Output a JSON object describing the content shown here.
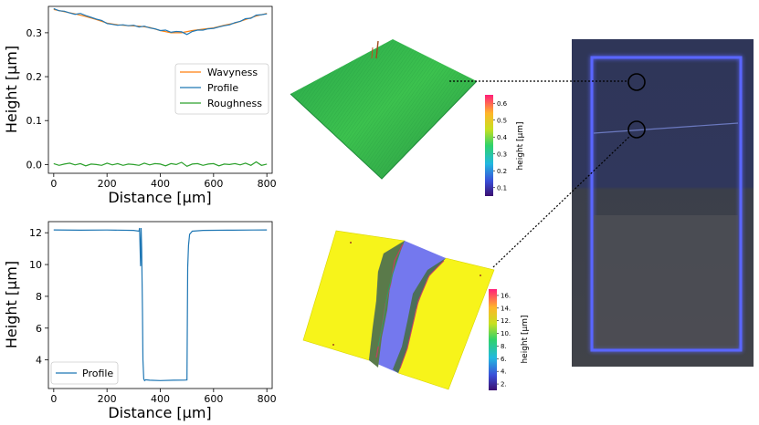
{
  "chart_data": [
    {
      "type": "line",
      "title": "",
      "xlabel": "Distance [µm]",
      "ylabel": "Height [µm]",
      "xlim": [
        -20,
        820
      ],
      "ylim": [
        -0.02,
        0.36
      ],
      "xticks": [
        "0",
        "200",
        "400",
        "600",
        "800"
      ],
      "yticks": [
        "0.0",
        "0.1",
        "0.2",
        "0.3"
      ],
      "legend_position": "center-right",
      "series": [
        {
          "name": "Wavyness",
          "color": "#ff7f0e",
          "x": [
            0,
            40,
            80,
            120,
            160,
            200,
            240,
            280,
            320,
            360,
            400,
            440,
            480,
            520,
            560,
            600,
            640,
            680,
            720,
            760,
            800
          ],
          "values": [
            0.353,
            0.348,
            0.343,
            0.337,
            0.33,
            0.322,
            0.318,
            0.316,
            0.315,
            0.312,
            0.305,
            0.3,
            0.3,
            0.305,
            0.308,
            0.311,
            0.317,
            0.322,
            0.33,
            0.338,
            0.344
          ]
        },
        {
          "name": "Profile",
          "color": "#1f77b4",
          "x": [
            0,
            20,
            40,
            60,
            80,
            100,
            120,
            140,
            160,
            180,
            200,
            220,
            240,
            260,
            280,
            300,
            320,
            340,
            360,
            380,
            400,
            420,
            440,
            460,
            480,
            500,
            520,
            540,
            560,
            580,
            600,
            620,
            640,
            660,
            680,
            700,
            720,
            740,
            760,
            780,
            800
          ],
          "values": [
            0.355,
            0.35,
            0.349,
            0.345,
            0.342,
            0.344,
            0.339,
            0.335,
            0.331,
            0.328,
            0.321,
            0.319,
            0.317,
            0.318,
            0.316,
            0.317,
            0.313,
            0.315,
            0.311,
            0.309,
            0.305,
            0.306,
            0.301,
            0.303,
            0.302,
            0.296,
            0.303,
            0.306,
            0.306,
            0.309,
            0.31,
            0.313,
            0.316,
            0.318,
            0.323,
            0.326,
            0.332,
            0.333,
            0.34,
            0.341,
            0.343
          ]
        },
        {
          "name": "Roughness",
          "color": "#2ca02c",
          "x": [
            0,
            20,
            40,
            60,
            80,
            100,
            120,
            140,
            160,
            180,
            200,
            220,
            240,
            260,
            280,
            300,
            320,
            340,
            360,
            380,
            400,
            420,
            440,
            460,
            480,
            500,
            520,
            540,
            560,
            580,
            600,
            620,
            640,
            660,
            680,
            700,
            720,
            740,
            760,
            780,
            800
          ],
          "values": [
            0.002,
            -0.002,
            0.001,
            0.003,
            -0.001,
            0.002,
            -0.003,
            0.001,
            0.0,
            -0.002,
            0.003,
            -0.001,
            0.002,
            -0.002,
            0.001,
            0.0,
            -0.002,
            0.003,
            -0.001,
            0.002,
            0.001,
            -0.003,
            0.002,
            0.0,
            0.005,
            -0.004,
            0.001,
            0.002,
            -0.002,
            0.001,
            0.002,
            -0.003,
            0.001,
            0.0,
            0.002,
            -0.001,
            0.003,
            -0.002,
            0.006,
            -0.002,
            0.001
          ]
        }
      ]
    },
    {
      "type": "line",
      "title": "",
      "xlabel": "Distance [µm]",
      "ylabel": "Height [µm]",
      "xlim": [
        -20,
        820
      ],
      "ylim": [
        2.2,
        12.7
      ],
      "xticks": [
        "0",
        "200",
        "400",
        "600",
        "800"
      ],
      "yticks": [
        "4",
        "6",
        "8",
        "10",
        "12"
      ],
      "legend_position": "lower-left",
      "series": [
        {
          "name": "Profile",
          "color": "#1f77b4",
          "x": [
            0,
            100,
            200,
            300,
            320,
            322,
            326,
            328,
            330,
            333,
            335,
            338,
            341,
            345,
            360,
            400,
            450,
            490,
            500,
            503,
            506,
            510,
            520,
            560,
            650,
            750,
            800
          ],
          "values": [
            12.18,
            12.16,
            12.17,
            12.15,
            12.1,
            12.3,
            9.9,
            12.3,
            11.0,
            7.0,
            4.0,
            2.8,
            2.7,
            2.75,
            2.72,
            2.7,
            2.72,
            2.73,
            2.74,
            9.8,
            11.2,
            11.9,
            12.1,
            12.15,
            12.16,
            12.17,
            12.18
          ]
        }
      ]
    },
    {
      "type": "heatmap",
      "title": "",
      "colorbar_label": "height [µm]",
      "colorbar_ticks": [
        "0.1",
        "0.2",
        "0.3",
        "0.4",
        "0.5",
        "0.6"
      ],
      "colorbar_range": [
        0.05,
        0.65
      ]
    },
    {
      "type": "heatmap",
      "title": "",
      "colorbar_label": "height [µm]",
      "colorbar_ticks": [
        "2.",
        "4.",
        "6.",
        "8.",
        "10.",
        "12.",
        "14.",
        "16."
      ],
      "colorbar_range": [
        1,
        17
      ]
    }
  ],
  "photo": {
    "markers": 2,
    "frame_color": "#4f5cff"
  }
}
